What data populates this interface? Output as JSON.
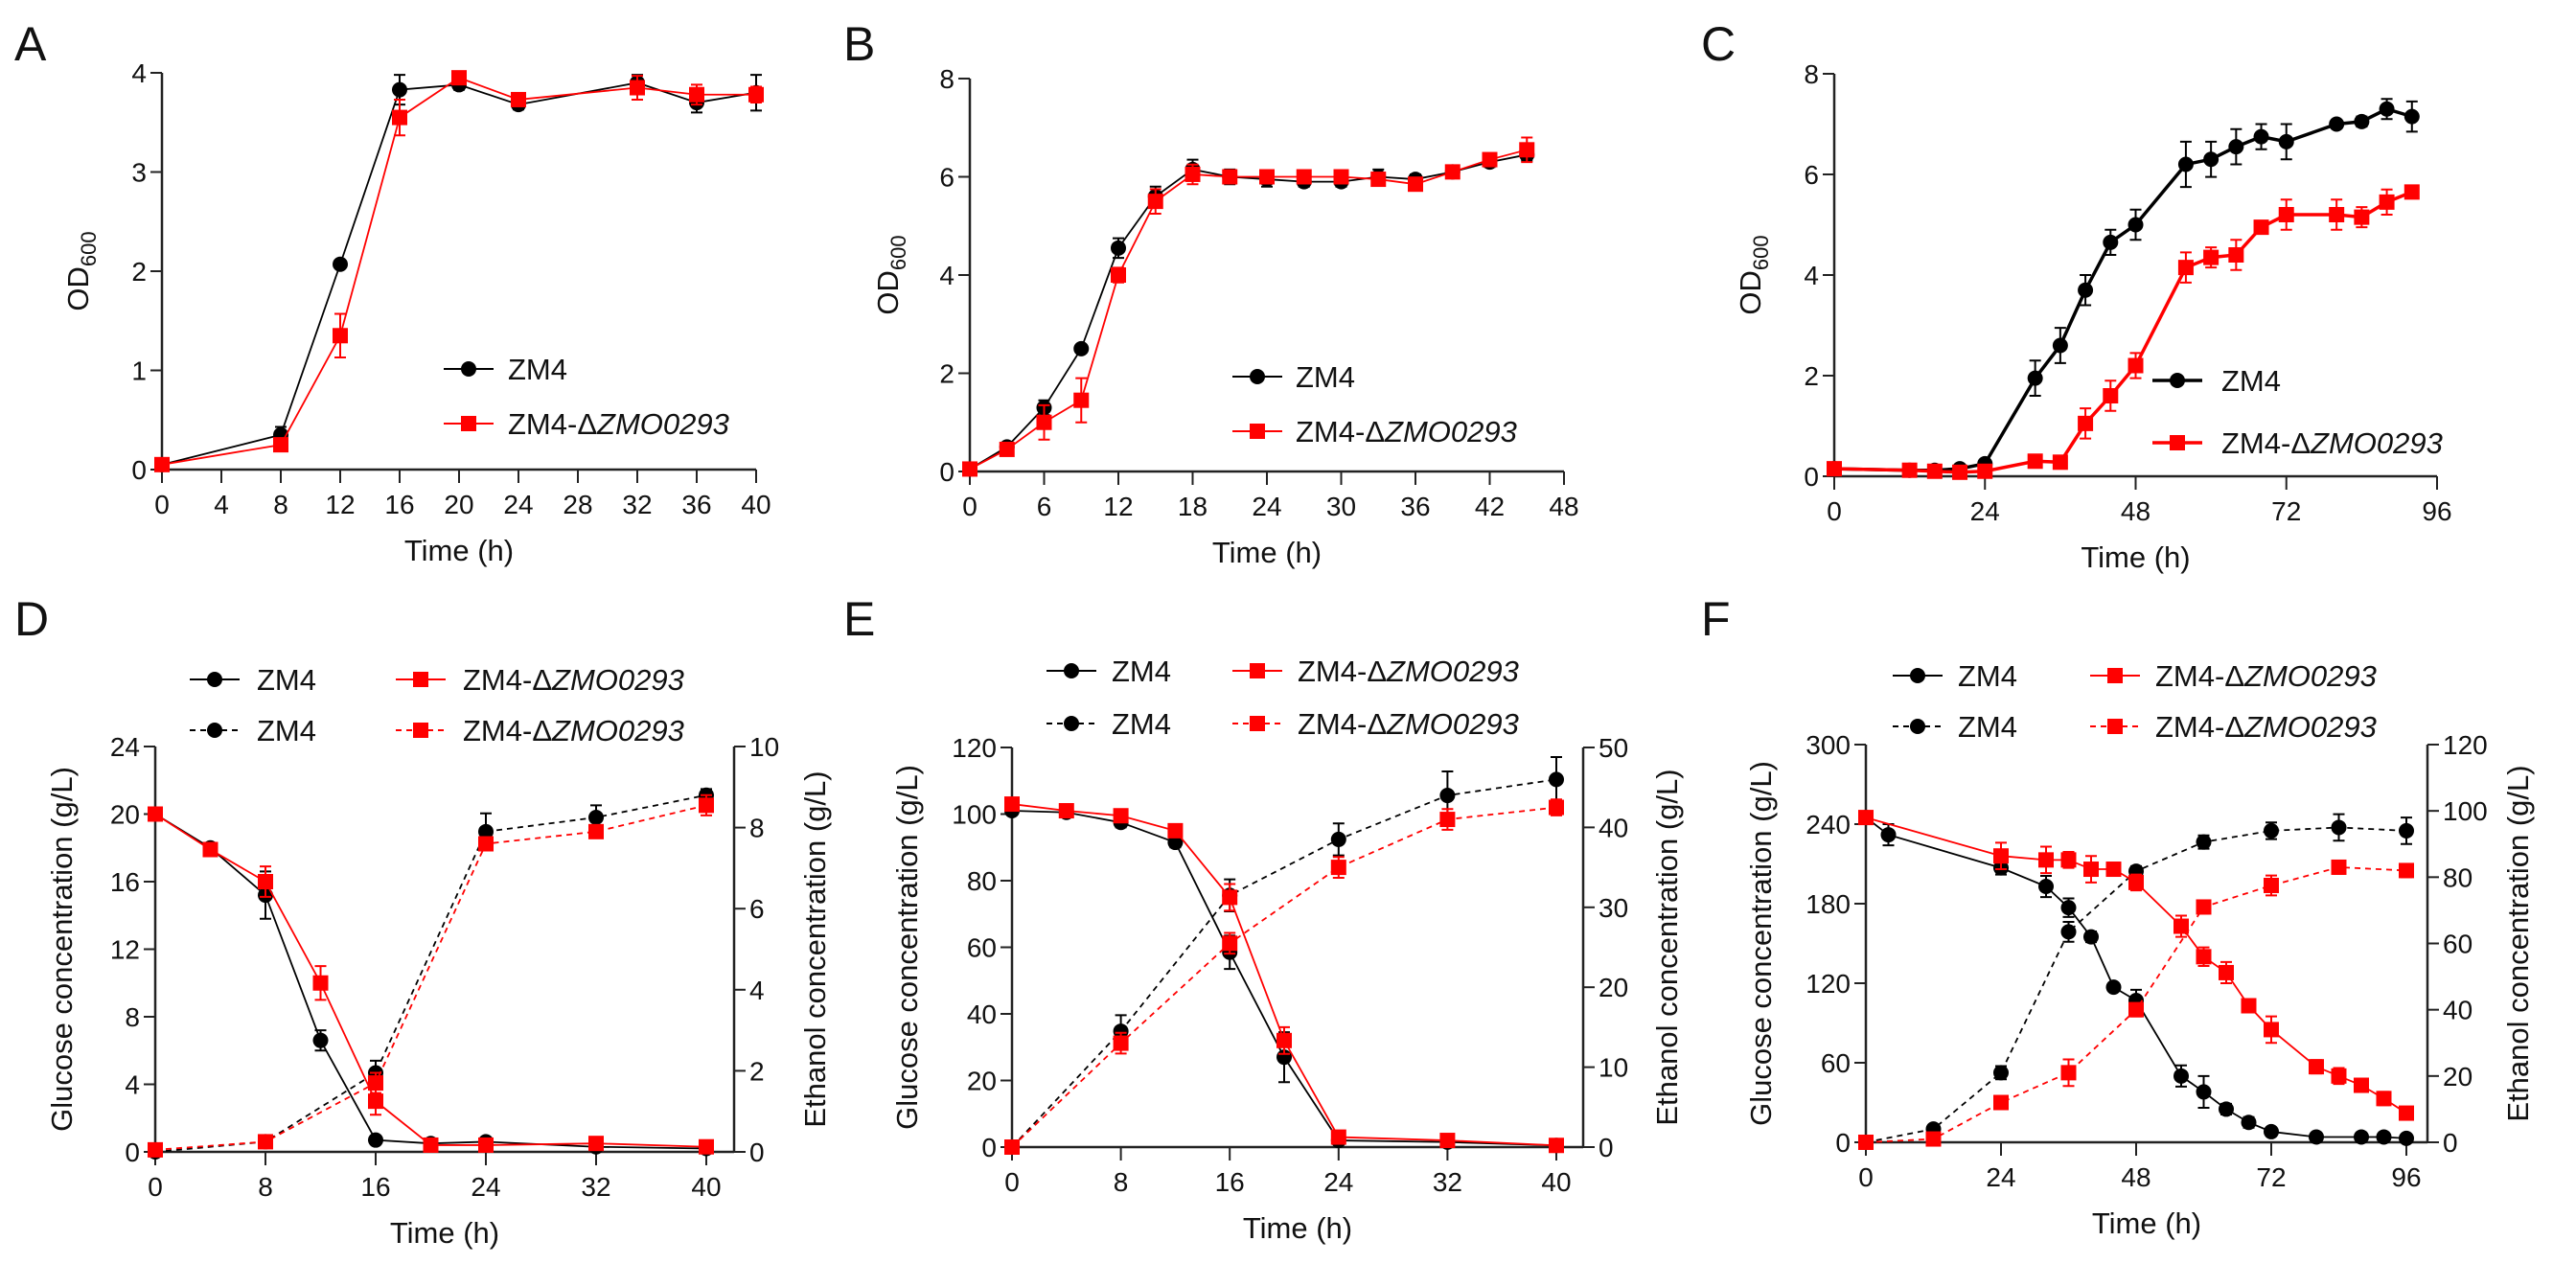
{
  "colors": {
    "zm4": "#000000",
    "mutant": "#ff0000"
  },
  "chart_data": [
    {
      "panel": "A",
      "type": "line",
      "xlabel": "Time (h)",
      "ylabel": "OD",
      "ylabel_sub": "600",
      "xlim": [
        0,
        40
      ],
      "xticks": [
        0,
        4,
        8,
        12,
        16,
        20,
        24,
        28,
        32,
        36,
        40
      ],
      "ylim": [
        0,
        4
      ],
      "yticks": [
        0,
        1,
        2,
        3,
        4
      ],
      "series": [
        {
          "name": "ZM4",
          "color": "#000000",
          "marker": "circle",
          "style": "solid",
          "axis": "left",
          "x": [
            0,
            8,
            12,
            16,
            20,
            24,
            32,
            36,
            40
          ],
          "y": [
            0.05,
            0.35,
            2.07,
            3.83,
            3.88,
            3.68,
            3.9,
            3.7,
            3.8
          ],
          "err": [
            0.03,
            0.08,
            0.03,
            0.15,
            0.05,
            0.05,
            0.08,
            0.1,
            0.18
          ]
        },
        {
          "name": "ZM4-ΔZMO0293",
          "color": "#ff0000",
          "marker": "square",
          "style": "solid",
          "axis": "left",
          "x": [
            0,
            8,
            12,
            16,
            20,
            24,
            32,
            36,
            40
          ],
          "y": [
            0.05,
            0.25,
            1.35,
            3.55,
            3.95,
            3.73,
            3.85,
            3.78,
            3.78
          ],
          "err": [
            0.03,
            0.06,
            0.22,
            0.18,
            0.05,
            0.05,
            0.12,
            0.1,
            0.08
          ]
        }
      ]
    },
    {
      "panel": "B",
      "type": "line",
      "xlabel": "Time (h)",
      "ylabel": "OD",
      "ylabel_sub": "600",
      "xlim": [
        0,
        48
      ],
      "xticks": [
        0,
        6,
        12,
        18,
        24,
        30,
        36,
        42,
        48
      ],
      "ylim": [
        0,
        8
      ],
      "yticks": [
        0,
        2,
        4,
        6,
        8
      ],
      "series": [
        {
          "name": "ZM4",
          "color": "#000000",
          "marker": "circle",
          "style": "solid",
          "axis": "left",
          "x": [
            0,
            3,
            6,
            9,
            12,
            15,
            18,
            21,
            24,
            27,
            30,
            33,
            36,
            39,
            42,
            45
          ],
          "y": [
            0.05,
            0.5,
            1.3,
            2.5,
            4.55,
            5.6,
            6.15,
            6.0,
            5.95,
            5.9,
            5.9,
            6.0,
            5.95,
            6.1,
            6.3,
            6.45
          ],
          "err": [
            0.05,
            0.05,
            0.15,
            0.05,
            0.2,
            0.2,
            0.2,
            0.15,
            0.15,
            0.1,
            0.1,
            0.15,
            0.1,
            0.08,
            0.1,
            0.12
          ]
        },
        {
          "name": "ZM4-ΔZMO0293",
          "color": "#ff0000",
          "marker": "square",
          "style": "solid",
          "axis": "left",
          "x": [
            0,
            3,
            6,
            9,
            12,
            15,
            18,
            21,
            24,
            27,
            30,
            33,
            36,
            39,
            42,
            45
          ],
          "y": [
            0.05,
            0.45,
            1.0,
            1.45,
            4.0,
            5.5,
            6.05,
            6.0,
            6.0,
            6.0,
            6.0,
            5.95,
            5.85,
            6.1,
            6.35,
            6.55
          ],
          "err": [
            0.05,
            0.05,
            0.35,
            0.45,
            0.15,
            0.25,
            0.2,
            0.12,
            0.12,
            0.12,
            0.12,
            0.12,
            0.12,
            0.08,
            0.08,
            0.25
          ]
        }
      ]
    },
    {
      "panel": "C",
      "type": "line",
      "xlabel": "Time (h)",
      "ylabel": "OD",
      "ylabel_sub": "600",
      "xlim": [
        0,
        96
      ],
      "xticks": [
        0,
        24,
        48,
        72,
        96
      ],
      "ylim": [
        0,
        8
      ],
      "yticks": [
        0,
        2,
        4,
        6,
        8
      ],
      "series": [
        {
          "name": "ZM4",
          "color": "#000000",
          "marker": "circle",
          "style": "solid",
          "axis": "left",
          "thick": true,
          "x": [
            0,
            12,
            16,
            20,
            24,
            32,
            36,
            40,
            44,
            48,
            56,
            60,
            64,
            68,
            72,
            80,
            84,
            88,
            92
          ],
          "y": [
            0.15,
            0.12,
            0.12,
            0.15,
            0.25,
            1.95,
            2.6,
            3.7,
            4.65,
            5.0,
            6.2,
            6.3,
            6.55,
            6.75,
            6.65,
            7.0,
            7.05,
            7.3,
            7.15
          ],
          "err": [
            0.05,
            0.03,
            0.03,
            0.03,
            0.05,
            0.35,
            0.35,
            0.3,
            0.25,
            0.3,
            0.45,
            0.35,
            0.35,
            0.25,
            0.35,
            0.08,
            0.1,
            0.2,
            0.3
          ]
        },
        {
          "name": "ZM4-ΔZMO0293",
          "color": "#ff0000",
          "marker": "square",
          "style": "solid",
          "axis": "left",
          "thick": true,
          "x": [
            0,
            12,
            16,
            20,
            24,
            32,
            36,
            40,
            44,
            48,
            56,
            60,
            64,
            68,
            72,
            80,
            84,
            88,
            92
          ],
          "y": [
            0.15,
            0.12,
            0.1,
            0.08,
            0.1,
            0.3,
            0.28,
            1.05,
            1.6,
            2.2,
            4.15,
            4.35,
            4.4,
            4.95,
            5.2,
            5.2,
            5.15,
            5.45,
            5.65
          ],
          "err": [
            0.05,
            0.03,
            0.03,
            0.03,
            0.03,
            0.05,
            0.05,
            0.3,
            0.3,
            0.25,
            0.3,
            0.2,
            0.3,
            0.12,
            0.3,
            0.3,
            0.2,
            0.25,
            0.12
          ]
        }
      ]
    },
    {
      "panel": "D",
      "type": "line",
      "xlabel": "Time (h)",
      "ylabel": "Glucose concentration  (g/L)",
      "y2label": "Ethanol concentration  (g/L)",
      "xlim": [
        0,
        40
      ],
      "xticks": [
        0,
        8,
        16,
        24,
        32,
        40
      ],
      "ylim": [
        0,
        24
      ],
      "yticks": [
        0,
        4,
        8,
        12,
        16,
        20,
        24
      ],
      "y2lim": [
        0,
        10
      ],
      "y2ticks": [
        0,
        2,
        4,
        6,
        8,
        10
      ],
      "series": [
        {
          "name": "ZM4",
          "color": "#000000",
          "marker": "circle",
          "style": "solid",
          "axis": "left",
          "x": [
            0,
            4,
            8,
            12,
            16,
            20,
            24,
            32,
            40
          ],
          "y": [
            20,
            18,
            15.2,
            6.6,
            0.7,
            0.5,
            0.6,
            0.3,
            0.2
          ],
          "err": [
            0.2,
            0.2,
            1.4,
            0.6,
            0.2,
            0.2,
            0.2,
            0.1,
            0.1
          ]
        },
        {
          "name": "ZM4",
          "color": "#000000",
          "marker": "circle",
          "style": "dashed",
          "axis": "right",
          "x": [
            0,
            8,
            16,
            24,
            32,
            40
          ],
          "y": [
            0,
            0.25,
            1.95,
            7.9,
            8.25,
            8.8
          ],
          "err": [
            0.02,
            0.05,
            0.3,
            0.45,
            0.3,
            0.15
          ]
        },
        {
          "name": "ZM4-ΔZMO0293",
          "color": "#ff0000",
          "marker": "square",
          "style": "solid",
          "axis": "left",
          "x": [
            0,
            4,
            8,
            12,
            16,
            20,
            24,
            32,
            40
          ],
          "y": [
            20,
            17.9,
            16,
            10,
            3,
            0.4,
            0.4,
            0.5,
            0.3
          ],
          "err": [
            0.2,
            0.2,
            0.9,
            1.0,
            0.8,
            0.1,
            0.1,
            0.1,
            0.1
          ]
        },
        {
          "name": "ZM4-ΔZMO0293",
          "color": "#ff0000",
          "marker": "square",
          "style": "dashed",
          "axis": "right",
          "x": [
            0,
            8,
            16,
            24,
            32,
            40
          ],
          "y": [
            0.05,
            0.25,
            1.7,
            7.6,
            7.9,
            8.55
          ],
          "err": [
            0.02,
            0.05,
            0.25,
            0.15,
            0.15,
            0.25
          ]
        }
      ]
    },
    {
      "panel": "E",
      "type": "line",
      "xlabel": "Time (h)",
      "ylabel": "Glucose concentration  (g/L)",
      "y2label": "Ethanol concentration  (g/L)",
      "xlim": [
        0,
        40
      ],
      "xticks": [
        0,
        8,
        16,
        24,
        32,
        40
      ],
      "ylim": [
        0,
        120
      ],
      "yticks": [
        0,
        20,
        40,
        60,
        80,
        100,
        120
      ],
      "y2lim": [
        0,
        50
      ],
      "y2ticks": [
        0,
        10,
        20,
        30,
        40,
        50
      ],
      "series": [
        {
          "name": "ZM4",
          "color": "#000000",
          "marker": "circle",
          "style": "solid",
          "axis": "left",
          "x": [
            0,
            4,
            8,
            12,
            16,
            20,
            24,
            32,
            40
          ],
          "y": [
            101,
            100.5,
            97.5,
            91.5,
            58.5,
            27,
            2,
            1.5,
            0.5
          ],
          "err": [
            1,
            1,
            1.5,
            1.5,
            5,
            7.5,
            0.5,
            0.5,
            0.3
          ]
        },
        {
          "name": "ZM4",
          "color": "#000000",
          "marker": "circle",
          "style": "dashed",
          "axis": "right",
          "x": [
            0,
            8,
            16,
            24,
            32,
            40
          ],
          "y": [
            0,
            14.5,
            31.5,
            38.5,
            44,
            46
          ],
          "err": [
            0.2,
            2,
            2,
            2,
            3,
            2.8
          ]
        },
        {
          "name": "ZM4-ΔZMO0293",
          "color": "#ff0000",
          "marker": "square",
          "style": "solid",
          "axis": "left",
          "x": [
            0,
            4,
            8,
            12,
            16,
            20,
            24,
            32,
            40
          ],
          "y": [
            103,
            101,
            99.5,
            95,
            75,
            32,
            3,
            2,
            0.5
          ],
          "err": [
            1.5,
            1,
            1.5,
            1,
            4,
            4,
            0.5,
            0.5,
            0.3
          ]
        },
        {
          "name": "ZM4-ΔZMO0293",
          "color": "#ff0000",
          "marker": "square",
          "style": "dashed",
          "axis": "right",
          "x": [
            0,
            8,
            16,
            24,
            32,
            40
          ],
          "y": [
            0,
            13,
            25.5,
            35,
            41,
            42.5
          ],
          "err": [
            0.2,
            1.3,
            1.3,
            1.3,
            1.3,
            1
          ]
        }
      ]
    },
    {
      "panel": "F",
      "type": "line",
      "xlabel": "Time (h)",
      "ylabel": "Glucose concentration  (g/L)",
      "y2label": "Ethanol concentration  (g/L)",
      "xlim": [
        0,
        96
      ],
      "xticks": [
        0,
        24,
        48,
        72,
        96
      ],
      "ylim": [
        0,
        300
      ],
      "yticks": [
        0,
        60,
        120,
        180,
        240,
        300
      ],
      "y2lim": [
        0,
        120
      ],
      "y2ticks": [
        0,
        20,
        40,
        60,
        80,
        100,
        120
      ],
      "series": [
        {
          "name": "ZM4",
          "color": "#000000",
          "marker": "circle",
          "style": "solid",
          "axis": "left",
          "x": [
            0,
            4,
            24,
            32,
            36,
            40,
            44,
            48,
            56,
            60,
            64,
            68,
            72,
            80,
            88,
            92,
            96
          ],
          "y": [
            245,
            232,
            207,
            193,
            177,
            155,
            117,
            107,
            50,
            38,
            25,
            15,
            8,
            4,
            4,
            4,
            3
          ],
          "err": [
            4,
            8,
            5,
            8,
            7,
            4,
            3,
            8,
            8,
            12,
            4,
            4,
            3,
            2,
            2,
            2,
            2
          ]
        },
        {
          "name": "ZM4",
          "color": "#000000",
          "marker": "circle",
          "style": "dashed",
          "axis": "right",
          "x": [
            0,
            12,
            24,
            36,
            48,
            60,
            72,
            84,
            96
          ],
          "y": [
            0,
            4,
            21,
            63.5,
            81.8,
            90.6,
            94,
            95,
            94
          ],
          "err": [
            0.3,
            0.5,
            2,
            3,
            1.5,
            2,
            2.5,
            4,
            4
          ]
        },
        {
          "name": "ZM4-ΔZMO0293",
          "color": "#ff0000",
          "marker": "square",
          "style": "solid",
          "axis": "left",
          "x": [
            0,
            24,
            32,
            36,
            40,
            44,
            48,
            56,
            60,
            64,
            68,
            72,
            80,
            84,
            88,
            92,
            96
          ],
          "y": [
            245,
            216,
            213,
            213,
            206,
            206,
            196,
            163,
            140,
            128,
            103,
            85,
            57,
            50,
            43,
            33,
            22
          ],
          "err": [
            4,
            10,
            10,
            6,
            10,
            5,
            6,
            8,
            7,
            8,
            5,
            10,
            5,
            6,
            5,
            5,
            4
          ]
        },
        {
          "name": "ZM4-ΔZMO0293",
          "color": "#ff0000",
          "marker": "square",
          "style": "dashed",
          "axis": "right",
          "x": [
            0,
            12,
            24,
            36,
            48,
            60,
            72,
            84,
            96
          ],
          "y": [
            0,
            1,
            12,
            21,
            40,
            71,
            77.5,
            83,
            82
          ],
          "err": [
            0.3,
            0.3,
            1,
            4,
            2,
            2,
            3,
            2,
            2
          ]
        }
      ]
    }
  ]
}
